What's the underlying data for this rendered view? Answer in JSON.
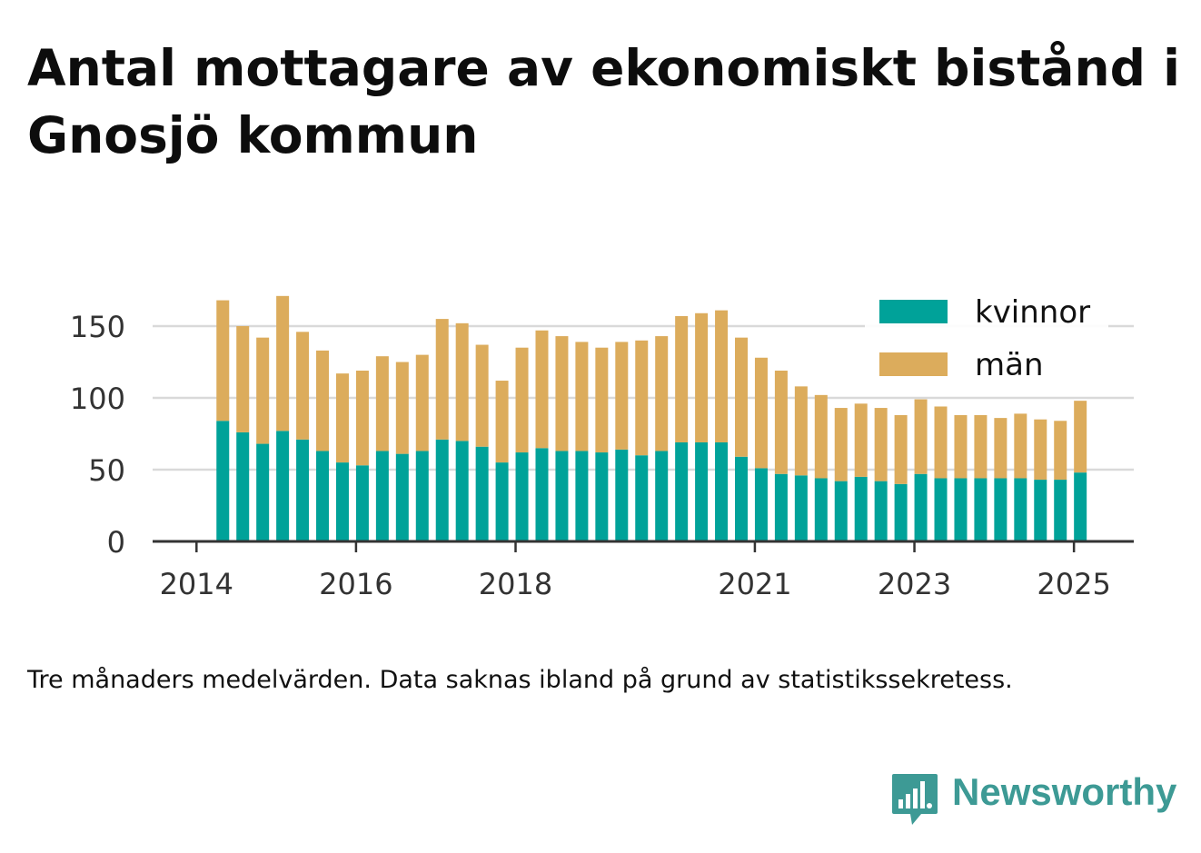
{
  "title": "Antal mottagare av ekonomiskt bistånd i Gnosjö kommun",
  "note": "Tre månaders medelvärden. Data saknas ibland på grund av statistikssekretess.",
  "brand": {
    "name": "Newsworthy",
    "color": "#3d9a95",
    "icon": "newsworthy-bar-chart-icon"
  },
  "chart_data": {
    "type": "bar",
    "stacked": true,
    "x_ticks": [
      {
        "label": "2014",
        "x": 2014.0
      },
      {
        "label": "2016",
        "x": 2016.0
      },
      {
        "label": "2018",
        "x": 2018.0
      },
      {
        "label": "2021",
        "x": 2021.0
      },
      {
        "label": "2023",
        "x": 2023.0
      },
      {
        "label": "2025",
        "x": 2025.0
      }
    ],
    "xlim": [
      2013.45,
      2025.75
    ],
    "y_ticks": [
      0,
      50,
      100,
      150
    ],
    "ylim": [
      0,
      175
    ],
    "grid": true,
    "legend_position": "top-right",
    "colors": {
      "kvinnor": "#00a299",
      "män": "#dcac5c"
    },
    "x": [
      2014.33,
      2014.58,
      2014.83,
      2015.08,
      2015.33,
      2015.58,
      2015.83,
      2016.08,
      2016.33,
      2016.58,
      2016.83,
      2017.08,
      2017.33,
      2017.58,
      2017.83,
      2018.08,
      2018.33,
      2018.58,
      2018.83,
      2019.08,
      2019.33,
      2019.58,
      2019.83,
      2020.08,
      2020.33,
      2020.58,
      2020.83,
      2021.08,
      2021.33,
      2021.58,
      2021.83,
      2022.08,
      2022.33,
      2022.58,
      2022.83,
      2023.08,
      2023.33,
      2023.58,
      2023.83,
      2024.08,
      2024.33,
      2024.58,
      2024.83,
      2025.08
    ],
    "series": [
      {
        "name": "kvinnor",
        "values": [
          84,
          76,
          68,
          77,
          71,
          63,
          55,
          53,
          63,
          61,
          63,
          71,
          70,
          66,
          55,
          62,
          65,
          63,
          63,
          62,
          64,
          60,
          63,
          69,
          69,
          69,
          59,
          51,
          47,
          46,
          44,
          42,
          45,
          42,
          40,
          47,
          44,
          44,
          44,
          44,
          44,
          43,
          43,
          48
        ]
      },
      {
        "name": "män",
        "values": [
          84,
          74,
          74,
          94,
          75,
          70,
          62,
          66,
          66,
          64,
          67,
          84,
          82,
          71,
          57,
          73,
          82,
          80,
          76,
          73,
          75,
          80,
          80,
          88,
          90,
          92,
          83,
          77,
          72,
          62,
          58,
          51,
          51,
          51,
          48,
          52,
          50,
          44,
          44,
          42,
          45,
          42,
          41,
          50
        ]
      }
    ]
  }
}
